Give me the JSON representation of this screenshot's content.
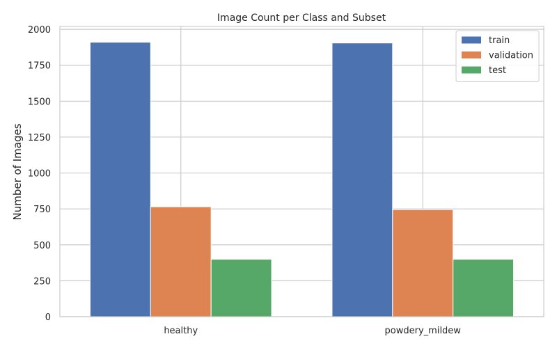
{
  "chart_data": {
    "type": "bar",
    "title": "Image Count per Class and Subset",
    "xlabel": "",
    "ylabel": "Number of Images",
    "categories": [
      "healthy",
      "powdery_mildew"
    ],
    "series": [
      {
        "name": "train",
        "values": [
          1910,
          1905
        ],
        "color": "#4c72b0"
      },
      {
        "name": "validation",
        "values": [
          765,
          745
        ],
        "color": "#dd8452"
      },
      {
        "name": "test",
        "values": [
          400,
          400
        ],
        "color": "#55a868"
      }
    ],
    "ylim": [
      0,
      2020
    ],
    "yticks": [
      0,
      250,
      500,
      750,
      1000,
      1250,
      1500,
      1750,
      2000
    ],
    "grid": true,
    "legend_position": "top-right"
  }
}
